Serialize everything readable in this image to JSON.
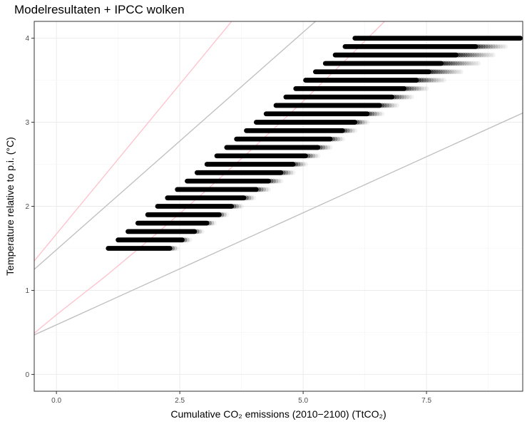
{
  "chart_data": {
    "type": "scatter",
    "title": "Modelresultaten + IPCC wolken",
    "xlabel": "Cumulative CO₂ emissions (2010−2100) (TtCO₂)",
    "ylabel": "Temperature relative to p.i. (°C)",
    "xlim": [
      -0.45,
      9.45
    ],
    "ylim": [
      -0.2,
      4.2
    ],
    "x_ticks": [
      "0.0",
      "2.5",
      "5.0",
      "7.5"
    ],
    "y_ticks": [
      "0",
      "1",
      "2",
      "3",
      "4"
    ],
    "grid": true,
    "point_bands": [
      {
        "y": 1.5,
        "x_min": 1.05,
        "x_max": 2.3,
        "x_fade": 2.45
      },
      {
        "y": 1.6,
        "x_min": 1.25,
        "x_max": 2.55,
        "x_fade": 2.7
      },
      {
        "y": 1.7,
        "x_min": 1.45,
        "x_max": 2.8,
        "x_fade": 2.95
      },
      {
        "y": 1.8,
        "x_min": 1.65,
        "x_max": 3.05,
        "x_fade": 3.2
      },
      {
        "y": 1.9,
        "x_min": 1.85,
        "x_max": 3.3,
        "x_fade": 3.45
      },
      {
        "y": 2.0,
        "x_min": 2.05,
        "x_max": 3.55,
        "x_fade": 3.75
      },
      {
        "y": 2.1,
        "x_min": 2.25,
        "x_max": 3.8,
        "x_fade": 4.0
      },
      {
        "y": 2.2,
        "x_min": 2.45,
        "x_max": 4.05,
        "x_fade": 4.3
      },
      {
        "y": 2.3,
        "x_min": 2.65,
        "x_max": 4.3,
        "x_fade": 4.55
      },
      {
        "y": 2.4,
        "x_min": 2.85,
        "x_max": 4.55,
        "x_fade": 4.8
      },
      {
        "y": 2.5,
        "x_min": 3.05,
        "x_max": 4.8,
        "x_fade": 5.05
      },
      {
        "y": 2.6,
        "x_min": 3.25,
        "x_max": 5.05,
        "x_fade": 5.3
      },
      {
        "y": 2.7,
        "x_min": 3.45,
        "x_max": 5.3,
        "x_fade": 5.55
      },
      {
        "y": 2.8,
        "x_min": 3.65,
        "x_max": 5.55,
        "x_fade": 5.8
      },
      {
        "y": 2.9,
        "x_min": 3.85,
        "x_max": 5.8,
        "x_fade": 6.05
      },
      {
        "y": 3.0,
        "x_min": 4.05,
        "x_max": 6.05,
        "x_fade": 6.3
      },
      {
        "y": 3.1,
        "x_min": 4.25,
        "x_max": 6.3,
        "x_fade": 6.6
      },
      {
        "y": 3.2,
        "x_min": 4.45,
        "x_max": 6.55,
        "x_fade": 6.9
      },
      {
        "y": 3.3,
        "x_min": 4.65,
        "x_max": 6.8,
        "x_fade": 7.2
      },
      {
        "y": 3.4,
        "x_min": 4.85,
        "x_max": 7.05,
        "x_fade": 7.5
      },
      {
        "y": 3.5,
        "x_min": 5.05,
        "x_max": 7.3,
        "x_fade": 7.85
      },
      {
        "y": 3.6,
        "x_min": 5.25,
        "x_max": 7.55,
        "x_fade": 8.2
      },
      {
        "y": 3.7,
        "x_min": 5.45,
        "x_max": 7.8,
        "x_fade": 8.55
      },
      {
        "y": 3.8,
        "x_min": 5.65,
        "x_max": 8.1,
        "x_fade": 8.85
      },
      {
        "y": 3.9,
        "x_min": 5.85,
        "x_max": 8.5,
        "x_fade": 9.1
      },
      {
        "y": 4.0,
        "x_min": 6.05,
        "x_max": 9.4,
        "x_fade": 9.4
      }
    ],
    "reference_lines": [
      {
        "color": "#ffc0cb",
        "points": [
          [
            -0.45,
            1.35
          ],
          [
            3.55,
            4.2
          ]
        ]
      },
      {
        "color": "#bebebe",
        "points": [
          [
            -0.45,
            1.25
          ],
          [
            5.25,
            4.2
          ]
        ]
      },
      {
        "color": "#ffc0cb",
        "points": [
          [
            -0.45,
            0.49
          ],
          [
            0.0,
            0.71
          ],
          [
            1.0,
            1.17
          ],
          [
            2.0,
            1.66
          ],
          [
            3.0,
            2.17
          ],
          [
            4.0,
            2.7
          ],
          [
            5.0,
            3.25
          ],
          [
            6.0,
            3.82
          ],
          [
            6.65,
            4.2
          ]
        ]
      },
      {
        "color": "#bebebe",
        "points": [
          [
            -0.45,
            0.47
          ],
          [
            9.45,
            3.11
          ]
        ]
      }
    ]
  }
}
